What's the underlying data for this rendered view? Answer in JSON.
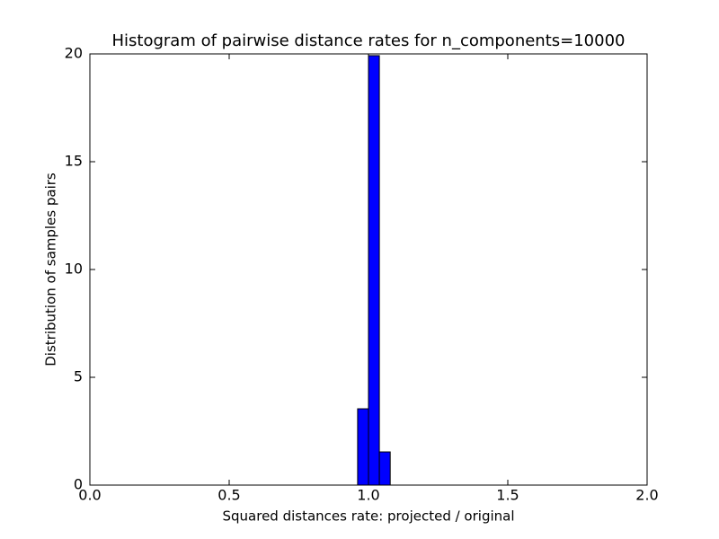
{
  "chart_data": {
    "type": "histogram",
    "title": "Histogram of pairwise distance rates for n_components=10000",
    "xlabel": "Squared distances rate: projected / original",
    "ylabel": "Distribution of samples pairs",
    "bins": [
      0.961,
      1.0,
      1.039,
      1.078
    ],
    "counts": [
      3.54,
      19.92,
      1.54
    ],
    "color": "#0000ff",
    "xlim": [
      0,
      2
    ],
    "xticks": [
      {
        "value": 0,
        "label": "0.0"
      },
      0.5,
      {
        "value": 1,
        "label": "1.0"
      },
      1.5,
      {
        "value": 2,
        "label": "2.0"
      }
    ],
    "ylim": [
      0,
      20
    ],
    "yticks": [
      0,
      5,
      10,
      15,
      20
    ]
  }
}
